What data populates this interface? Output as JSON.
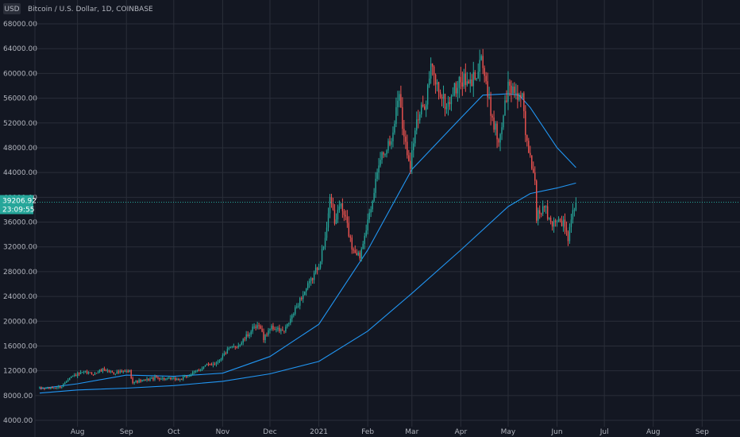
{
  "header": {
    "currency": "USD",
    "symbol_title": "Bitcoin / U.S. Dollar, 1D, COINBASE"
  },
  "price_badge": {
    "price": "39206.92",
    "countdown": "23:09:55"
  },
  "colors": {
    "background": "#131722",
    "grid": "#2a2e39",
    "up": "#26a69a",
    "down": "#ef5350",
    "ma": "#2196f3",
    "badge": "#26a69a",
    "text": "#b2b5be"
  },
  "chart_data": {
    "type": "candlestick",
    "title": "Bitcoin / U.S. Dollar, 1D, COINBASE",
    "ylim": [
      2000,
      70000
    ],
    "yticks": [
      "4000.00",
      "8000.00",
      "12000.00",
      "16000.00",
      "20000.00",
      "24000.00",
      "28000.00",
      "32000.00",
      "36000.00",
      "40000.00",
      "44000.00",
      "48000.00",
      "52000.00",
      "56000.00",
      "60000.00",
      "64000.00",
      "68000.00"
    ],
    "xlim": [
      "2020-07-05",
      "2021-09-25"
    ],
    "xticks": [
      {
        "date": "2020-08-01",
        "label": "Aug"
      },
      {
        "date": "2020-09-01",
        "label": "Sep"
      },
      {
        "date": "2020-10-01",
        "label": "Oct"
      },
      {
        "date": "2020-11-01",
        "label": "Nov"
      },
      {
        "date": "2020-12-01",
        "label": "Dec"
      },
      {
        "date": "2021-01-01",
        "label": "2021"
      },
      {
        "date": "2021-02-01",
        "label": "Feb"
      },
      {
        "date": "2021-03-01",
        "label": "Mar"
      },
      {
        "date": "2021-04-01",
        "label": "Apr"
      },
      {
        "date": "2021-05-01",
        "label": "May"
      },
      {
        "date": "2021-06-01",
        "label": "Jun"
      },
      {
        "date": "2021-07-01",
        "label": "Jul"
      },
      {
        "date": "2021-08-01",
        "label": "Aug"
      },
      {
        "date": "2021-09-01",
        "label": "Sep"
      }
    ],
    "grid": true,
    "last_price": 39206.92,
    "close_path": [
      [
        "2020-07-08",
        9200
      ],
      [
        "2020-07-15",
        9150
      ],
      [
        "2020-07-22",
        9500
      ],
      [
        "2020-07-27",
        11000
      ],
      [
        "2020-08-05",
        11700
      ],
      [
        "2020-08-12",
        11500
      ],
      [
        "2020-08-17",
        12250
      ],
      [
        "2020-08-24",
        11700
      ],
      [
        "2020-08-31",
        11800
      ],
      [
        "2020-09-03",
        11900
      ],
      [
        "2020-09-05",
        10200
      ],
      [
        "2020-09-12",
        10400
      ],
      [
        "2020-09-20",
        10900
      ],
      [
        "2020-09-25",
        10700
      ],
      [
        "2020-10-05",
        10600
      ],
      [
        "2020-10-12",
        11400
      ],
      [
        "2020-10-21",
        12800
      ],
      [
        "2020-10-28",
        13300
      ],
      [
        "2020-11-05",
        15500
      ],
      [
        "2020-11-12",
        16300
      ],
      [
        "2020-11-20",
        18700
      ],
      [
        "2020-11-25",
        19200
      ],
      [
        "2020-11-27",
        17100
      ],
      [
        "2020-12-01",
        19000
      ],
      [
        "2020-12-10",
        18300
      ],
      [
        "2020-12-16",
        21300
      ],
      [
        "2020-12-20",
        23500
      ],
      [
        "2020-12-27",
        26500
      ],
      [
        "2021-01-01",
        29300
      ],
      [
        "2021-01-05",
        33000
      ],
      [
        "2021-01-08",
        40500
      ],
      [
        "2021-01-11",
        35500
      ],
      [
        "2021-01-14",
        39000
      ],
      [
        "2021-01-18",
        36500
      ],
      [
        "2021-01-22",
        32000
      ],
      [
        "2021-01-27",
        30500
      ],
      [
        "2021-01-30",
        34500
      ],
      [
        "2021-02-03",
        37500
      ],
      [
        "2021-02-08",
        46000
      ],
      [
        "2021-02-12",
        48000
      ],
      [
        "2021-02-16",
        49000
      ],
      [
        "2021-02-21",
        57500
      ],
      [
        "2021-02-24",
        49500
      ],
      [
        "2021-02-28",
        45500
      ],
      [
        "2021-03-03",
        51000
      ],
      [
        "2021-03-10",
        56000
      ],
      [
        "2021-03-13",
        61000
      ],
      [
        "2021-03-17",
        58000
      ],
      [
        "2021-03-23",
        54500
      ],
      [
        "2021-03-27",
        57000
      ],
      [
        "2021-04-02",
        59000
      ],
      [
        "2021-04-06",
        57800
      ],
      [
        "2021-04-10",
        59700
      ],
      [
        "2021-04-14",
        63000
      ],
      [
        "2021-04-18",
        56000
      ],
      [
        "2021-04-23",
        51000
      ],
      [
        "2021-04-25",
        49000
      ],
      [
        "2021-05-01",
        57800
      ],
      [
        "2021-05-06",
        57000
      ],
      [
        "2021-05-10",
        56000
      ],
      [
        "2021-05-12",
        49500
      ],
      [
        "2021-05-15",
        46500
      ],
      [
        "2021-05-18",
        42800
      ],
      [
        "2021-05-19",
        37000
      ],
      [
        "2021-05-22",
        37800
      ],
      [
        "2021-05-24",
        38500
      ],
      [
        "2021-05-28",
        35600
      ],
      [
        "2021-06-01",
        36600
      ],
      [
        "2021-06-05",
        35800
      ],
      [
        "2021-06-08",
        33400
      ],
      [
        "2021-06-11",
        37300
      ],
      [
        "2021-06-13",
        39206.92
      ]
    ],
    "series": [
      {
        "points": [
          [
            "2020-07-08",
            9100
          ],
          [
            "2020-08-01",
            9900
          ],
          [
            "2020-09-01",
            11300
          ],
          [
            "2020-10-01",
            11100
          ],
          [
            "2020-11-01",
            11600
          ],
          [
            "2020-12-01",
            14300
          ],
          [
            "2021-01-01",
            19500
          ],
          [
            "2021-02-01",
            31500
          ],
          [
            "2021-02-15",
            38000
          ],
          [
            "2021-03-01",
            44500
          ],
          [
            "2021-04-01",
            52800
          ],
          [
            "2021-04-15",
            56500
          ],
          [
            "2021-05-01",
            56700
          ],
          [
            "2021-05-08",
            56500
          ],
          [
            "2021-05-15",
            54500
          ],
          [
            "2021-06-01",
            48000
          ],
          [
            "2021-06-13",
            44800
          ]
        ]
      },
      {
        "points": [
          [
            "2020-07-08",
            8400
          ],
          [
            "2020-08-01",
            8900
          ],
          [
            "2020-09-01",
            9200
          ],
          [
            "2020-10-01",
            9600
          ],
          [
            "2020-11-01",
            10300
          ],
          [
            "2020-12-01",
            11500
          ],
          [
            "2021-01-01",
            13500
          ],
          [
            "2021-02-01",
            18400
          ],
          [
            "2021-03-01",
            24500
          ],
          [
            "2021-04-01",
            31500
          ],
          [
            "2021-05-01",
            38500
          ],
          [
            "2021-05-15",
            40600
          ],
          [
            "2021-06-01",
            41500
          ],
          [
            "2021-06-13",
            42300
          ]
        ]
      }
    ]
  }
}
